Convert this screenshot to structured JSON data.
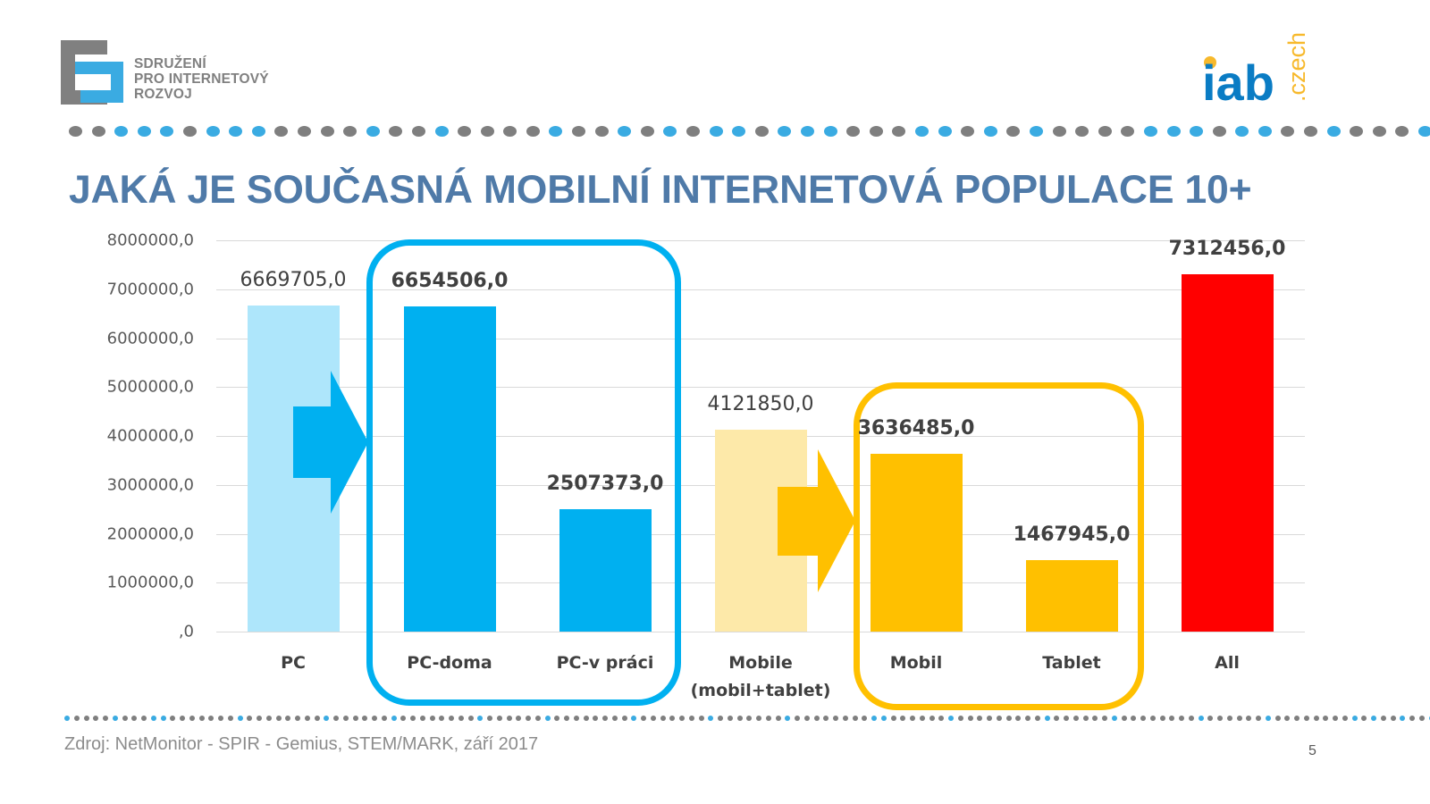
{
  "header": {
    "org_logo_text_lines": [
      "SDRUŽENÍ",
      "PRO INTERNETOVÝ",
      "ROZVOJ"
    ],
    "partner_logo": {
      "main": "iab",
      "sub": ".czech"
    }
  },
  "colors": {
    "title": "#4f7aa8",
    "dot_gray": "#7f7f7f",
    "dot_blue": "#3aabe2",
    "pc_light": "#aee6fb",
    "pc_blue": "#00b0f0",
    "mobile_light": "#fde9a9",
    "mobile_yellow": "#ffc000",
    "all_red": "#ff0000",
    "gridline": "#d9d9d9",
    "spir_gray": "#808080",
    "spir_blue": "#3aabe2",
    "iab_blue": "#0a7cc4",
    "iab_orange": "#f7b92c"
  },
  "dots_top_pattern": "GGBBBGBBBGGGGBGGBGGGGBGGBGBGBBGBBBGGGBBGBGBGGGGBBBGBBGGBGGGB",
  "dots_bottom_pattern": "BGGGGBGGGBBGGGGGGGBGGGGGGGGBGGGGGGBGGGGGGGGBGGGGGGBGGGGGGGGBGGGGGGGBGGGGGGGBGGGGGGGGBBGGGGGGBGGGGGGGGGBGGGGGGBGGGGGGGGBGGGGGGBGGGGGGGGBGBGGBGGBBGB",
  "title": "JAKÁ JE SOUČASNÁ MOBILNÍ INTERNETOVÁ POPULACE 10+",
  "chart_data": {
    "type": "bar",
    "title": "JAKÁ JE SOUČASNÁ MOBILNÍ INTERNETOVÁ POPULACE 10+",
    "xlabel": "",
    "ylabel": "",
    "ylim": [
      0,
      8000000
    ],
    "grid": true,
    "legend": "none",
    "y_ticks": [
      "8000000,0",
      "7000000,0",
      "6000000,0",
      "5000000,0",
      "4000000,0",
      "3000000,0",
      "2000000,0",
      "1000000,0",
      ",0"
    ],
    "categories": [
      "PC",
      "PC-doma",
      "PC-v práci",
      "Mobile (mobil+tablet)",
      "Mobil",
      "Tablet",
      "All"
    ],
    "category_labels": [
      [
        "PC"
      ],
      [
        "PC-doma"
      ],
      [
        "PC-v práci"
      ],
      [
        "Mobile",
        "(mobil+tablet)"
      ],
      [
        "Mobil"
      ],
      [
        "Tablet"
      ],
      [
        "All"
      ]
    ],
    "values": [
      6669705.0,
      6654506.0,
      2507373.0,
      4121850.0,
      3636485.0,
      1467945.0,
      7312456.0
    ],
    "value_labels": [
      "6669705,0",
      "6654506,0",
      "2507373,0",
      "4121850,0",
      "3636485,0",
      "1467945,0",
      "7312456,0"
    ],
    "label_bold": [
      false,
      true,
      true,
      false,
      true,
      true,
      true
    ],
    "bar_colors": [
      "#aee6fb",
      "#00b0f0",
      "#00b0f0",
      "#fde9a9",
      "#ffc000",
      "#ffc000",
      "#ff0000"
    ],
    "annotations": [
      {
        "type": "rounded-box",
        "groups": [
          "PC-doma",
          "PC-v práci"
        ],
        "color": "#00b0f0"
      },
      {
        "type": "rounded-box",
        "groups": [
          "Mobil",
          "Tablet"
        ],
        "color": "#ffc000"
      },
      {
        "type": "arrow",
        "from": "PC",
        "to": "PC-doma",
        "color": "#00b0f0"
      },
      {
        "type": "arrow",
        "from": "Mobile (mobil+tablet)",
        "to": "Mobil",
        "color": "#ffc000"
      }
    ]
  },
  "footer": {
    "source": "Zdroj: NetMonitor - SPIR - Gemius,  STEM/MARK, září 2017",
    "page_number": "5"
  }
}
